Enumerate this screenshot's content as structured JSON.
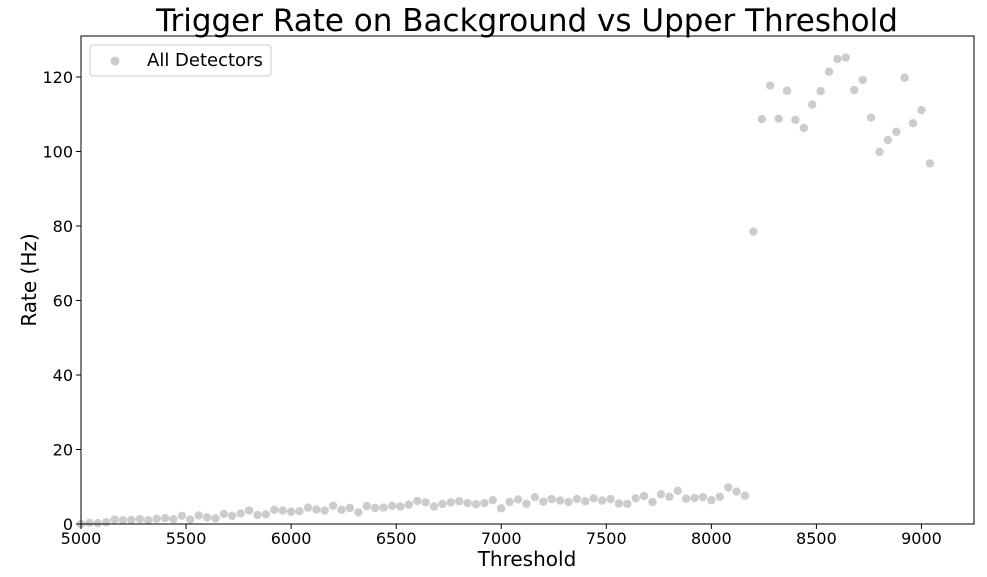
{
  "chart_data": {
    "type": "scatter",
    "title": "Trigger Rate on Background vs Upper Threshold",
    "xlabel": "Threshold",
    "ylabel": "Rate (Hz)",
    "xlim": [
      5000,
      9250
    ],
    "ylim": [
      0,
      131
    ],
    "xticks": [
      5000,
      5500,
      6000,
      6500,
      7000,
      7500,
      8000,
      8500,
      9000
    ],
    "yticks": [
      0,
      20,
      40,
      60,
      80,
      100,
      120
    ],
    "grid": false,
    "legend": {
      "position": "top-left",
      "entries": [
        "All Detectors"
      ]
    },
    "series": [
      {
        "name": "All Detectors",
        "color": "#cccccc",
        "points": [
          [
            5000,
            0
          ],
          [
            5040,
            0.3
          ],
          [
            5080,
            0.2
          ],
          [
            5120,
            0.5
          ],
          [
            5160,
            1.2
          ],
          [
            5200,
            1.0
          ],
          [
            5240,
            1.1
          ],
          [
            5280,
            1.3
          ],
          [
            5320,
            1.0
          ],
          [
            5360,
            1.4
          ],
          [
            5400,
            1.6
          ],
          [
            5440,
            1.3
          ],
          [
            5480,
            2.2
          ],
          [
            5520,
            1.2
          ],
          [
            5560,
            2.3
          ],
          [
            5600,
            1.8
          ],
          [
            5640,
            1.5
          ],
          [
            5680,
            2.7
          ],
          [
            5720,
            2.2
          ],
          [
            5760,
            2.8
          ],
          [
            5800,
            3.6
          ],
          [
            5840,
            2.4
          ],
          [
            5880,
            2.6
          ],
          [
            5920,
            3.8
          ],
          [
            5960,
            3.6
          ],
          [
            6000,
            3.3
          ],
          [
            6040,
            3.4
          ],
          [
            6080,
            4.4
          ],
          [
            6120,
            3.9
          ],
          [
            6160,
            3.6
          ],
          [
            6200,
            4.9
          ],
          [
            6240,
            3.8
          ],
          [
            6280,
            4.3
          ],
          [
            6320,
            3.1
          ],
          [
            6360,
            4.8
          ],
          [
            6400,
            4.3
          ],
          [
            6440,
            4.4
          ],
          [
            6480,
            4.9
          ],
          [
            6520,
            4.7
          ],
          [
            6560,
            5.2
          ],
          [
            6600,
            6.2
          ],
          [
            6640,
            5.8
          ],
          [
            6680,
            4.7
          ],
          [
            6720,
            5.4
          ],
          [
            6760,
            5.8
          ],
          [
            6800,
            6.1
          ],
          [
            6840,
            5.6
          ],
          [
            6880,
            5.3
          ],
          [
            6920,
            5.6
          ],
          [
            6960,
            6.4
          ],
          [
            7000,
            4.2
          ],
          [
            7040,
            5.9
          ],
          [
            7080,
            6.6
          ],
          [
            7120,
            5.4
          ],
          [
            7160,
            7.2
          ],
          [
            7200,
            6.0
          ],
          [
            7240,
            6.7
          ],
          [
            7280,
            6.3
          ],
          [
            7320,
            5.9
          ],
          [
            7360,
            6.7
          ],
          [
            7400,
            6.1
          ],
          [
            7440,
            6.9
          ],
          [
            7480,
            6.3
          ],
          [
            7520,
            6.7
          ],
          [
            7560,
            5.5
          ],
          [
            7600,
            5.4
          ],
          [
            7640,
            6.9
          ],
          [
            7680,
            7.5
          ],
          [
            7720,
            5.9
          ],
          [
            7760,
            8.0
          ],
          [
            7800,
            7.3
          ],
          [
            7840,
            8.9
          ],
          [
            7880,
            6.8
          ],
          [
            7920,
            7.0
          ],
          [
            7960,
            7.2
          ],
          [
            8000,
            6.4
          ],
          [
            8040,
            7.3
          ],
          [
            8080,
            9.8
          ],
          [
            8120,
            8.7
          ],
          [
            8160,
            7.6
          ],
          [
            8200,
            78.5
          ],
          [
            8240,
            108.7
          ],
          [
            8280,
            117.7
          ],
          [
            8320,
            108.8
          ],
          [
            8360,
            116.3
          ],
          [
            8400,
            108.5
          ],
          [
            8440,
            106.3
          ],
          [
            8480,
            112.6
          ],
          [
            8520,
            116.2
          ],
          [
            8560,
            121.4
          ],
          [
            8600,
            124.8
          ],
          [
            8640,
            125.2
          ],
          [
            8680,
            116.5
          ],
          [
            8720,
            119.2
          ],
          [
            8760,
            109.1
          ],
          [
            8800,
            99.9
          ],
          [
            8840,
            103.1
          ],
          [
            8880,
            105.3
          ],
          [
            8920,
            119.8
          ],
          [
            8960,
            107.6
          ],
          [
            9000,
            111.1
          ],
          [
            9040,
            96.8
          ]
        ]
      }
    ]
  }
}
